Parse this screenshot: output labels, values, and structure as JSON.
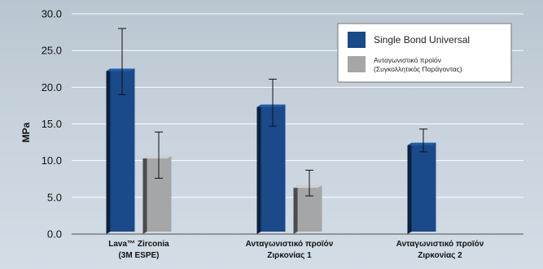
{
  "chart_data": {
    "type": "bar",
    "title": "",
    "xlabel": "",
    "ylabel": "MPa",
    "ylim": [
      0,
      30
    ],
    "yticks": [
      "0.0",
      "5.0",
      "10.0",
      "15.0",
      "20.0",
      "25.0",
      "30.0"
    ],
    "ytick_values": [
      0,
      5,
      10,
      15,
      20,
      25,
      30
    ],
    "grid": true,
    "legend_position": "top-right",
    "categories": [
      [
        "Lava™ Zirconia",
        "(3M ESPE)"
      ],
      [
        "Ανταγωνιστικό προϊόν",
        "Ζιρκονίας 1"
      ],
      [
        "Ανταγωνιστικό προϊόν",
        "Ζιρκονίας 2"
      ]
    ],
    "series": [
      {
        "name": [
          "Single Bond Universal"
        ],
        "color": "#1a4a8a",
        "values": [
          22.2,
          17.3,
          12.1
        ],
        "err_low": [
          19.0,
          14.7,
          11.2
        ],
        "err_high": [
          28.0,
          21.1,
          14.3
        ]
      },
      {
        "name": [
          "Ανταγωνιστικό προϊόν",
          "(Συγκολλητικός Παράγοντας)"
        ],
        "color": "#a4a6a8",
        "values": [
          10.3,
          6.3,
          null
        ],
        "err_low": [
          7.6,
          5.2,
          null
        ],
        "err_high": [
          13.9,
          8.7,
          null
        ]
      }
    ]
  }
}
